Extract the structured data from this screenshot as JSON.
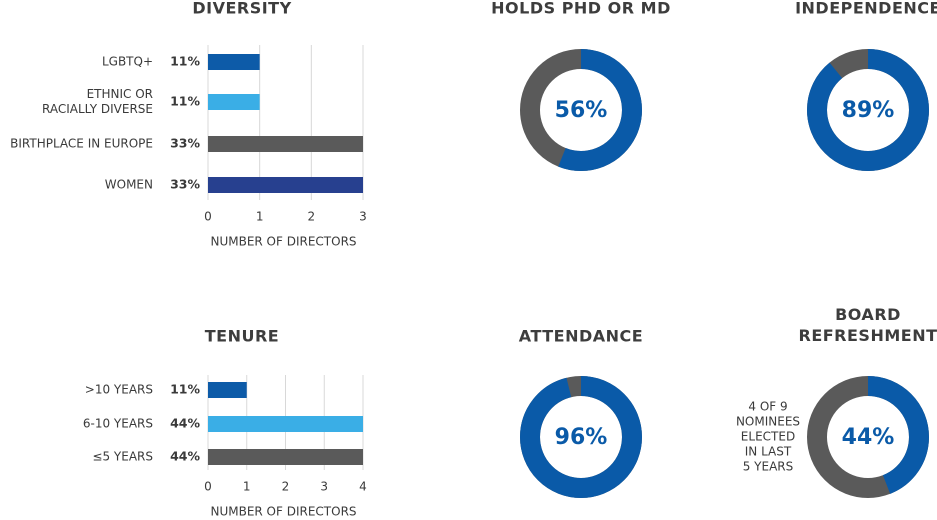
{
  "chart_data": [
    {
      "type": "bar",
      "title": "DIVERSITY",
      "categories": [
        "LGBTQ+",
        [
          "ETHNIC OR",
          "RACIALLY DIVERSE"
        ],
        "BIRTHPLACE IN EUROPE",
        "WOMEN"
      ],
      "values": [
        1,
        1,
        3,
        3
      ],
      "percent_labels": [
        "11%",
        "11%",
        "33%",
        "33%"
      ],
      "colors": [
        "#0d5ba8",
        "#3aaee6",
        "#5a5a5a",
        "#27408f"
      ],
      "xlim": [
        0,
        3
      ],
      "xticks": [
        0,
        1,
        2,
        3
      ],
      "xlabel": "NUMBER OF DIRECTORS",
      "grid": true
    },
    {
      "type": "donut",
      "title": "HOLDS PHD OR MD",
      "value": 56,
      "value_label": "56%",
      "color": "#0a5aa8",
      "track_color": "#5a5a5a"
    },
    {
      "type": "donut",
      "title": "INDEPENDENCE",
      "value": 89,
      "value_label": "89%",
      "color": "#0a5aa8",
      "track_color": "#5a5a5a"
    },
    {
      "type": "bar",
      "title": "TENURE",
      "categories": [
        ">10 YEARS",
        "6-10 YEARS",
        "≤5 YEARS"
      ],
      "values": [
        1,
        4,
        4
      ],
      "percent_labels": [
        "11%",
        "44%",
        "44%"
      ],
      "colors": [
        "#0d5ba8",
        "#3aaee6",
        "#5a5a5a"
      ],
      "xlim": [
        0,
        4
      ],
      "xticks": [
        0,
        1,
        2,
        3,
        4
      ],
      "xlabel": "NUMBER OF DIRECTORS",
      "grid": true
    },
    {
      "type": "donut",
      "title": "ATTENDANCE",
      "value": 96,
      "value_label": "96%",
      "color": "#0a5aa8",
      "track_color": "#5a5a5a"
    },
    {
      "type": "donut",
      "title": [
        "BOARD",
        "REFRESHMENT"
      ],
      "value": 44,
      "value_label": "44%",
      "color": "#0a5aa8",
      "track_color": "#5a5a5a",
      "note": [
        "4 OF 9",
        "NOMINEES",
        "ELECTED",
        "IN LAST",
        "5 YEARS"
      ]
    }
  ]
}
